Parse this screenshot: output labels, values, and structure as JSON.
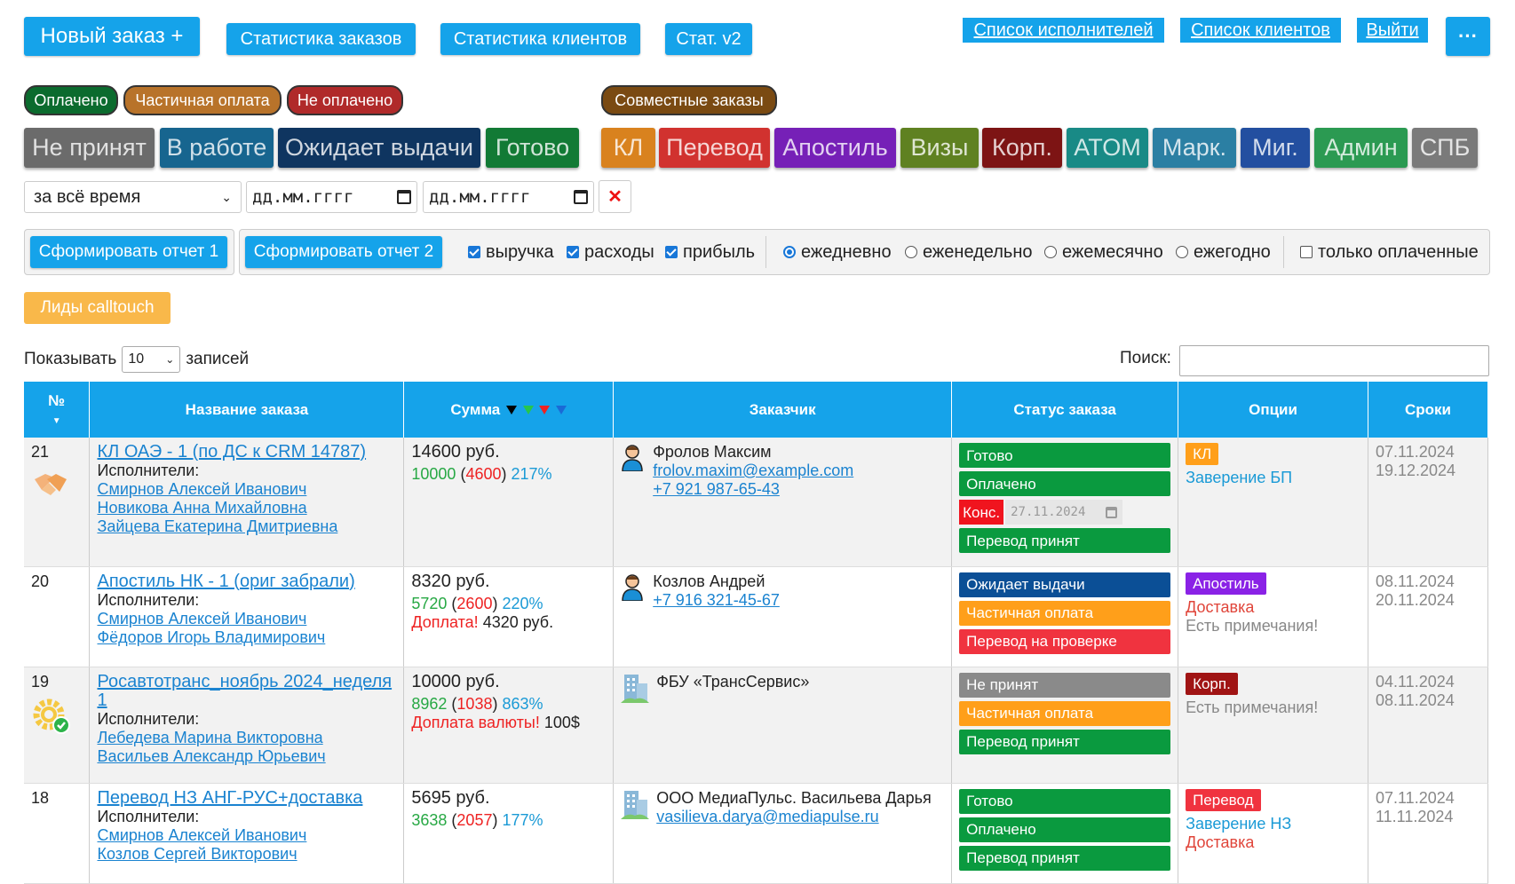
{
  "header": {
    "new_order": "Новый заказ +",
    "nav_buttons": [
      "Статистика заказов",
      "Статистика клиентов",
      "Стат. v2"
    ],
    "links": [
      "Список исполнителей",
      "Список клиентов",
      "Выйти"
    ],
    "more": "···"
  },
  "payment_filters": [
    {
      "label": "Оплачено",
      "color": "#0b6b2e"
    },
    {
      "label": "Частичная оплата",
      "color": "#b8732a"
    },
    {
      "label": "Не оплачено",
      "color": "#b02a2a"
    }
  ],
  "joint_orders": {
    "label": "Совместные заказы",
    "color": "#7a4a12"
  },
  "status_filters": [
    {
      "label": "Не принят",
      "color": "#6b6b6b"
    },
    {
      "label": "В работе",
      "color": "#17658f"
    },
    {
      "label": "Ожидает выдачи",
      "color": "#0f3560"
    },
    {
      "label": "Готово",
      "color": "#127a35"
    }
  ],
  "category_filters": [
    {
      "label": "КЛ",
      "color": "#d9821e"
    },
    {
      "label": "Перевод",
      "color": "#d1322f"
    },
    {
      "label": "Апостиль",
      "color": "#7620b7"
    },
    {
      "label": "Визы",
      "color": "#5f8121"
    },
    {
      "label": "Корп.",
      "color": "#7d1414"
    },
    {
      "label": "ATOM",
      "color": "#198a86"
    },
    {
      "label": "Марк.",
      "color": "#2b7fa3"
    },
    {
      "label": "Миг.",
      "color": "#234fa0"
    },
    {
      "label": "Админ",
      "color": "#2b9a52"
    },
    {
      "label": "СПБ",
      "color": "#7a7a7a"
    }
  ],
  "period": {
    "selected": "за всё время",
    "date_from_placeholder": "дд.мм.гггг",
    "date_to_placeholder": "дд.мм.гггг",
    "clear": "✕"
  },
  "reports": {
    "report1": "Сформировать отчет 1",
    "report2": "Сформировать отчет 2",
    "checkboxes": [
      {
        "label": "выручка",
        "checked": true
      },
      {
        "label": "расходы",
        "checked": true
      },
      {
        "label": "прибыль",
        "checked": true
      }
    ],
    "radios": [
      {
        "label": "ежедневно",
        "checked": true
      },
      {
        "label": "еженедельно",
        "checked": false
      },
      {
        "label": "ежемесячно",
        "checked": false
      },
      {
        "label": "ежегодно",
        "checked": false
      }
    ],
    "only_paid": {
      "label": "только оплаченные",
      "checked": false
    }
  },
  "leads_button": "Лиды calltouch",
  "table_controls": {
    "show_label": "Показывать",
    "page_size": "10",
    "records_label": "записей",
    "search_label": "Поиск:"
  },
  "table": {
    "headers": [
      "№",
      "Название заказа",
      "Сумма",
      "Заказчик",
      "Статус заказа",
      "Опции",
      "Сроки"
    ],
    "executors_label": "Исполнители:",
    "rows": [
      {
        "num": "21",
        "title": "КЛ ОАЭ - 1 (по ДС к CRM 14787)",
        "icon": "handshake-icon",
        "executors": [
          "Смирнов Алексей Иванович",
          "Новикова Анна Михайловна",
          "Зайцева Екатерина Дмитриевна"
        ],
        "sum": "14600 руб.",
        "profit": "10000",
        "cost": "4600",
        "percent": "217%",
        "extra_label": "",
        "extra_value": "",
        "client_type": "person",
        "client_name": "Фролов Максим",
        "client_email": "frolov.maxim@example.com",
        "client_phone": "+7 921 987-65-43",
        "statuses": [
          {
            "label": "Готово",
            "color": "#0a9a3f"
          },
          {
            "label": "Оплачено",
            "color": "#0a9a3f"
          },
          {
            "label": "Перевод принят",
            "color": "#0a9a3f"
          }
        ],
        "kons": {
          "label": "Конс.",
          "date": "27.11.2024"
        },
        "tag": {
          "label": "КЛ",
          "color": "#ff9f1a"
        },
        "options": [
          {
            "text": "Заверение БП",
            "color": "#1a9ad6"
          }
        ],
        "dates": [
          "07.11.2024",
          "19.12.2024"
        ]
      },
      {
        "num": "20",
        "title": "Апостиль НК - 1 (ориг забрали)",
        "icon": "",
        "executors": [
          "Смирнов Алексей Иванович",
          "Фёдоров Игорь Владимирович"
        ],
        "sum": "8320 руб.",
        "profit": "5720",
        "cost": "2600",
        "percent": "220%",
        "extra_label": "Доплата!",
        "extra_value": "4320 руб.",
        "client_type": "person",
        "client_name": "Козлов Андрей",
        "client_email": "",
        "client_phone": "+7 916 321-45-67",
        "statuses": [
          {
            "label": "Ожидает выдачи",
            "color": "#0b4f96"
          },
          {
            "label": "Частичная оплата",
            "color": "#ff9f1a"
          },
          {
            "label": "Перевод на проверке",
            "color": "#f0333f"
          }
        ],
        "tag": {
          "label": "Апостиль",
          "color": "#8a22e6"
        },
        "options": [
          {
            "text": "Доставка",
            "color": "#e0453a"
          },
          {
            "text": "Есть примечания!",
            "color": "#888888"
          }
        ],
        "dates": [
          "08.11.2024",
          "20.11.2024"
        ]
      },
      {
        "num": "19",
        "title": "Росавтотранс_ноябрь 2024_неделя 1",
        "icon": "gear-check-icon",
        "executors": [
          "Лебедева Марина Викторовна",
          "Васильев Александр Юрьевич"
        ],
        "sum": "10000 руб.",
        "profit": "8962",
        "cost": "1038",
        "percent": "863%",
        "extra_label": "Доплата валюты!",
        "extra_value": "100$",
        "client_type": "company",
        "client_name": "ФБУ «ТрансСервис»",
        "client_email": "",
        "client_phone": "",
        "statuses": [
          {
            "label": "Не принят",
            "color": "#8a8a8a"
          },
          {
            "label": "Частичная оплата",
            "color": "#ff9f1a"
          },
          {
            "label": "Перевод принят",
            "color": "#0a9a3f"
          }
        ],
        "tag": {
          "label": "Корп.",
          "color": "#a01414"
        },
        "options": [
          {
            "text": "Есть примечания!",
            "color": "#888888"
          }
        ],
        "dates": [
          "04.11.2024",
          "08.11.2024"
        ]
      },
      {
        "num": "18",
        "title": "Перевод НЗ АНГ-РУС+доставка",
        "icon": "",
        "executors": [
          "Смирнов Алексей Иванович",
          "Козлов Сергей Викторович"
        ],
        "sum": "5695 руб.",
        "profit": "3638",
        "cost": "2057",
        "percent": "177%",
        "extra_label": "",
        "extra_value": "",
        "client_type": "company",
        "client_name": "ООО МедиаПульс. Васильева Дарья",
        "client_email": "vasilieva.darya@mediapulse.ru",
        "client_phone": "",
        "statuses": [
          {
            "label": "Готово",
            "color": "#0a9a3f"
          },
          {
            "label": "Оплачено",
            "color": "#0a9a3f"
          },
          {
            "label": "Перевод принят",
            "color": "#0a9a3f"
          }
        ],
        "tag": {
          "label": "Перевод",
          "color": "#f0333f"
        },
        "options": [
          {
            "text": "Заверение НЗ",
            "color": "#1a9ad6"
          },
          {
            "text": "Доставка",
            "color": "#e0453a"
          }
        ],
        "dates": [
          "07.11.2024",
          "11.11.2024"
        ]
      }
    ]
  }
}
